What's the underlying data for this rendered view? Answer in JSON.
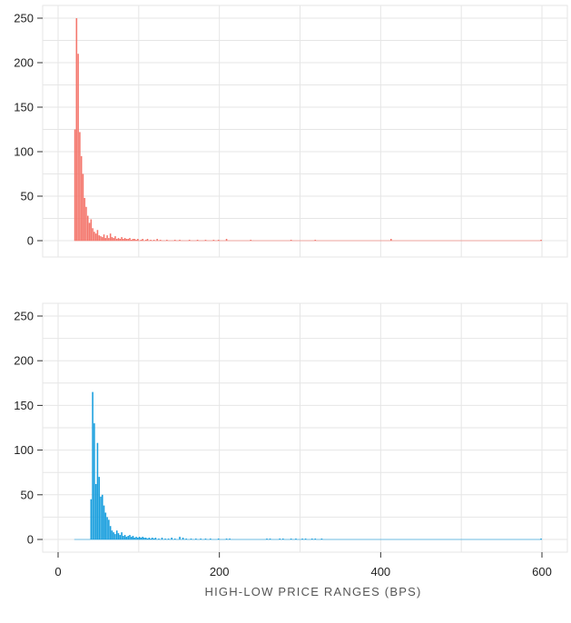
{
  "chart_data": {
    "type": "histogram",
    "xlabel": "HIGH-LOW PRICE RANGES (BPS)",
    "xlim": [
      0,
      630
    ],
    "x_ticks": [
      0,
      200,
      400,
      600
    ],
    "ylim": [
      0,
      265
    ],
    "y_ticks": [
      0,
      50,
      100,
      150,
      200,
      250
    ],
    "bin_width": 2,
    "shared_x_axis": true,
    "grid": true,
    "panels": [
      {
        "color": "#f4776d",
        "bins": [
          [
            20,
            125
          ],
          [
            22,
            250
          ],
          [
            24,
            210
          ],
          [
            26,
            122
          ],
          [
            28,
            95
          ],
          [
            30,
            75
          ],
          [
            32,
            48
          ],
          [
            34,
            38
          ],
          [
            36,
            28
          ],
          [
            38,
            20
          ],
          [
            40,
            24
          ],
          [
            42,
            14
          ],
          [
            44,
            10
          ],
          [
            46,
            8
          ],
          [
            48,
            12
          ],
          [
            50,
            6
          ],
          [
            52,
            5
          ],
          [
            54,
            4
          ],
          [
            56,
            7
          ],
          [
            58,
            3
          ],
          [
            60,
            6
          ],
          [
            62,
            3
          ],
          [
            64,
            8
          ],
          [
            66,
            4
          ],
          [
            68,
            3
          ],
          [
            70,
            5
          ],
          [
            72,
            2
          ],
          [
            74,
            3
          ],
          [
            76,
            2
          ],
          [
            78,
            4
          ],
          [
            80,
            2
          ],
          [
            82,
            3
          ],
          [
            84,
            2
          ],
          [
            86,
            2
          ],
          [
            88,
            3
          ],
          [
            90,
            1
          ],
          [
            92,
            2
          ],
          [
            94,
            2
          ],
          [
            96,
            1
          ],
          [
            98,
            2
          ],
          [
            102,
            1
          ],
          [
            104,
            2
          ],
          [
            108,
            1
          ],
          [
            110,
            2
          ],
          [
            114,
            1
          ],
          [
            118,
            1
          ],
          [
            122,
            2
          ],
          [
            126,
            1
          ],
          [
            134,
            1
          ],
          [
            144,
            1
          ],
          [
            150,
            1
          ],
          [
            162,
            1
          ],
          [
            172,
            1
          ],
          [
            182,
            1
          ],
          [
            192,
            1
          ],
          [
            198,
            1
          ],
          [
            208,
            2
          ],
          [
            238,
            1
          ],
          [
            288,
            1
          ],
          [
            318,
            1
          ],
          [
            412,
            2
          ],
          [
            598,
            1
          ]
        ]
      },
      {
        "color": "#1a9fde",
        "bins": [
          [
            40,
            45
          ],
          [
            42,
            165
          ],
          [
            44,
            130
          ],
          [
            46,
            62
          ],
          [
            48,
            108
          ],
          [
            50,
            70
          ],
          [
            52,
            48
          ],
          [
            54,
            50
          ],
          [
            56,
            38
          ],
          [
            58,
            30
          ],
          [
            60,
            25
          ],
          [
            62,
            22
          ],
          [
            64,
            15
          ],
          [
            66,
            10
          ],
          [
            68,
            8
          ],
          [
            70,
            6
          ],
          [
            72,
            10
          ],
          [
            74,
            7
          ],
          [
            76,
            5
          ],
          [
            78,
            8
          ],
          [
            80,
            4
          ],
          [
            82,
            5
          ],
          [
            84,
            3
          ],
          [
            86,
            4
          ],
          [
            88,
            5
          ],
          [
            90,
            3
          ],
          [
            92,
            4
          ],
          [
            94,
            2
          ],
          [
            96,
            3
          ],
          [
            98,
            2
          ],
          [
            100,
            3
          ],
          [
            102,
            2
          ],
          [
            104,
            3
          ],
          [
            106,
            2
          ],
          [
            108,
            2
          ],
          [
            110,
            1
          ],
          [
            112,
            2
          ],
          [
            114,
            1
          ],
          [
            116,
            2
          ],
          [
            118,
            1
          ],
          [
            120,
            2
          ],
          [
            124,
            1
          ],
          [
            128,
            2
          ],
          [
            132,
            1
          ],
          [
            136,
            1
          ],
          [
            140,
            2
          ],
          [
            144,
            1
          ],
          [
            150,
            3
          ],
          [
            154,
            2
          ],
          [
            158,
            1
          ],
          [
            164,
            1
          ],
          [
            170,
            1
          ],
          [
            176,
            1
          ],
          [
            182,
            1
          ],
          [
            188,
            1
          ],
          [
            198,
            1
          ],
          [
            208,
            1
          ],
          [
            212,
            1
          ],
          [
            258,
            1
          ],
          [
            262,
            1
          ],
          [
            274,
            1
          ],
          [
            278,
            1
          ],
          [
            288,
            1
          ],
          [
            294,
            1
          ],
          [
            302,
            1
          ],
          [
            306,
            1
          ],
          [
            314,
            1
          ],
          [
            318,
            1
          ],
          [
            326,
            1
          ],
          [
            598,
            1
          ]
        ]
      }
    ]
  }
}
